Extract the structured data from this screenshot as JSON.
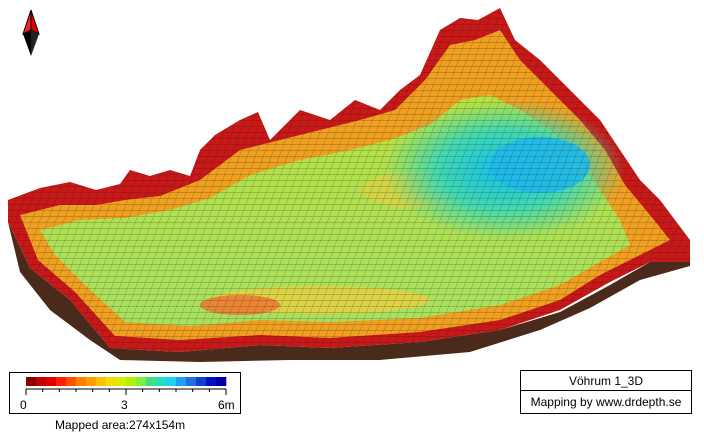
{
  "map": {
    "title": "Vöhrum 1_3D",
    "credit": "Mapping by www.drdepth.se",
    "mapped_area": "Mapped area:274x154m",
    "compass_icon": "north-arrow-icon"
  },
  "legend": {
    "ticks": [
      "0",
      "3",
      "6m"
    ],
    "depth_max_m": 6,
    "colors": [
      "#8b0000",
      "#c00000",
      "#e00000",
      "#ff2000",
      "#ff5000",
      "#ff8000",
      "#ffa000",
      "#ffc000",
      "#f0e000",
      "#d8f000",
      "#b0f000",
      "#80f040",
      "#40e080",
      "#20e0c0",
      "#20d0f0",
      "#20a0f0",
      "#2070e0",
      "#1040d0",
      "#0010c0",
      "#0000a0"
    ]
  }
}
